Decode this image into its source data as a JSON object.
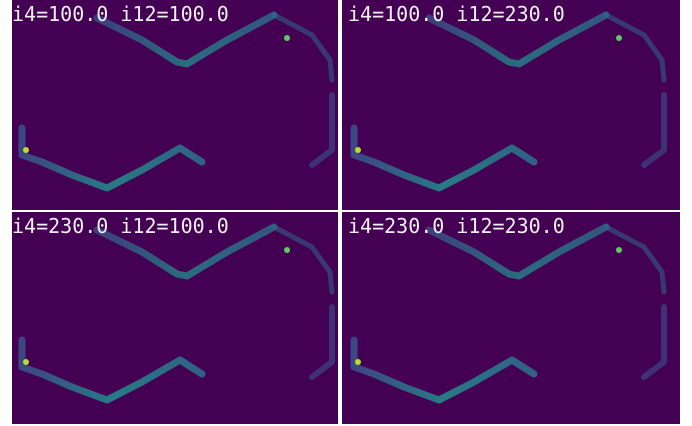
{
  "panels": [
    {
      "title": "i4=100.0  i12=100.0"
    },
    {
      "title": "i4=100.0  i12=230.0"
    },
    {
      "title": "i4=230.0  i12=100.0"
    },
    {
      "title": "i4=230.0  i12=230.0"
    }
  ]
}
